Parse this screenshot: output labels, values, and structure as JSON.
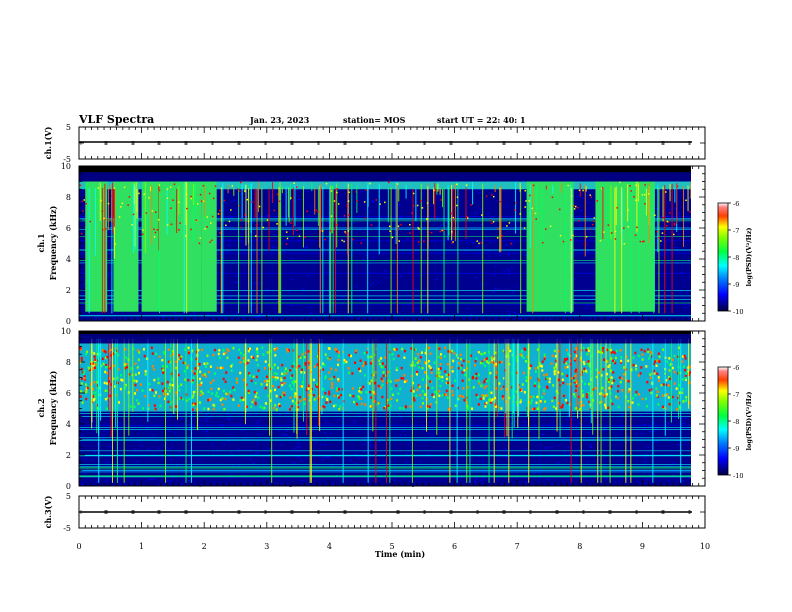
{
  "header": {
    "title": "VLF Spectra",
    "date": "Jan. 23, 2023",
    "station": "station= MOS",
    "start_ut": "start UT =  22: 40: 1"
  },
  "colorbar": {
    "label": "log(PSD)(V²/Hz)",
    "ticks": [
      "-6",
      "-7",
      "-8",
      "-9",
      "-10"
    ],
    "colors": [
      "#000080",
      "#0000ff",
      "#00a0ff",
      "#00ffff",
      "#00ff60",
      "#80ff00",
      "#ffff00",
      "#ff8000",
      "#ff0000",
      "#ffffff"
    ]
  },
  "chart_data": [
    {
      "type": "line",
      "ylabel": "ch.1(V)",
      "ylim": [
        -5,
        5
      ],
      "yticks": [
        "5",
        "-5"
      ],
      "xlim": [
        0,
        10
      ],
      "level": 0
    },
    {
      "type": "heatmap",
      "ylabel_top": "ch.1",
      "ylabel": "Frequency (kHz)",
      "xlim": [
        0,
        10
      ],
      "ylim": [
        0,
        10
      ],
      "yticks": [
        "0",
        "2",
        "4",
        "6",
        "8",
        "10"
      ],
      "colorbar_range": [
        -10,
        -6
      ],
      "intense_band_khz": [
        0.5,
        9
      ],
      "broadband_intervals_min": [
        [
          0.1,
          0.45
        ],
        [
          0.55,
          0.95
        ],
        [
          1.0,
          1.95
        ],
        [
          1.95,
          2.2
        ],
        [
          7.15,
          7.9
        ],
        [
          8.25,
          9.2
        ]
      ]
    },
    {
      "type": "heatmap",
      "ylabel_top": "ch.2",
      "ylabel": "Frequency (kHz)",
      "xlim": [
        0,
        10
      ],
      "ylim": [
        0,
        10
      ],
      "yticks": [
        "0",
        "2",
        "4",
        "6",
        "8",
        "10"
      ],
      "colorbar_range": [
        -10,
        -6
      ],
      "intense_band_khz": [
        5,
        9
      ]
    },
    {
      "type": "line",
      "ylabel": "ch.3(V)",
      "ylim": [
        -5,
        5
      ],
      "yticks": [
        "5",
        "-5"
      ],
      "xlim": [
        0,
        10
      ],
      "xlabel": "Time (min)",
      "xticks": [
        "0",
        "1",
        "2",
        "3",
        "4",
        "5",
        "6",
        "7",
        "8",
        "9",
        "10"
      ],
      "level": 0
    }
  ]
}
